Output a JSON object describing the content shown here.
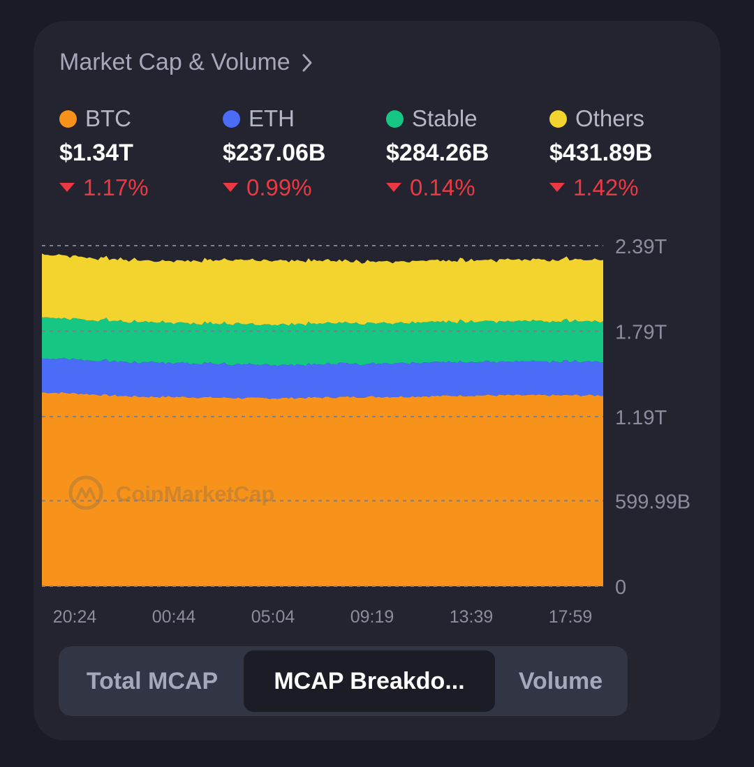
{
  "header": {
    "title": "Market Cap & Volume"
  },
  "stats": [
    {
      "name": "BTC",
      "color": "#f7931a",
      "value": "$1.34T",
      "change": "1.17%"
    },
    {
      "name": "ETH",
      "color": "#4a6cf7",
      "value": "$237.06B",
      "change": "0.99%"
    },
    {
      "name": "Stable",
      "color": "#16c784",
      "value": "$284.26B",
      "change": "0.14%"
    },
    {
      "name": "Others",
      "color": "#f3d42f",
      "value": "$431.89B",
      "change": "1.42%"
    }
  ],
  "chart_data": {
    "type": "area",
    "stacked": true,
    "x": [
      "20:24",
      "00:44",
      "05:04",
      "09:19",
      "13:39",
      "17:59"
    ],
    "y_ticks": [
      "0",
      "599.99B",
      "1.19T",
      "1.79T",
      "2.39T"
    ],
    "y_tick_values": [
      0,
      599.99,
      1190,
      1790,
      2390
    ],
    "ylim": [
      0,
      2390
    ],
    "grid": true,
    "watermark": "CoinMarketCap",
    "series": [
      {
        "name": "BTC",
        "color": "#f7931a",
        "values": [
          1360,
          1330,
          1320,
          1330,
          1340,
          1340
        ]
      },
      {
        "name": "ETH",
        "color": "#4a6cf7",
        "values": [
          240,
          240,
          235,
          235,
          236,
          237
        ]
      },
      {
        "name": "Stable",
        "color": "#16c784",
        "values": [
          284,
          284,
          284,
          284,
          284,
          284
        ]
      },
      {
        "name": "Others",
        "color": "#f3d42f",
        "values": [
          444,
          432,
          450,
          432,
          430,
          432
        ]
      }
    ]
  },
  "tabs": [
    {
      "label": "Total MCAP",
      "active": false
    },
    {
      "label": "MCAP Breakdo...",
      "active": true
    },
    {
      "label": "Volume",
      "active": false
    }
  ]
}
